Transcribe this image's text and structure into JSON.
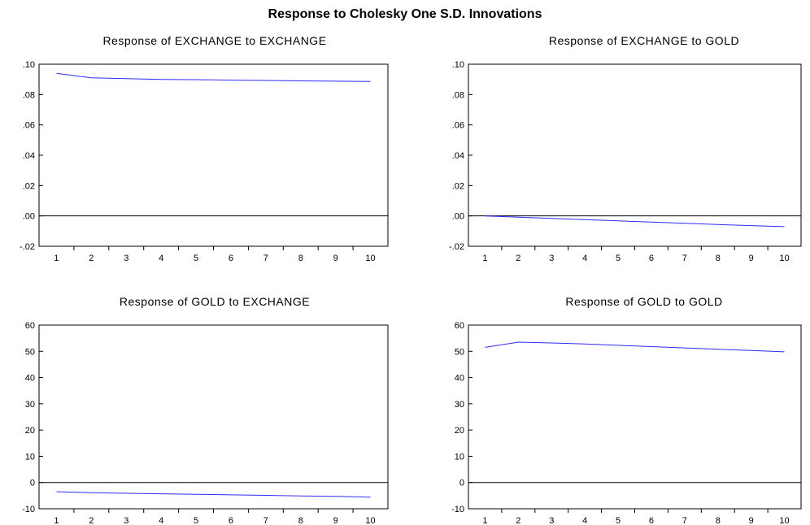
{
  "title": "Response to Cholesky One S.D. Innovations",
  "chart_data": [
    {
      "type": "line",
      "title": "Response of EXCHANGE to EXCHANGE",
      "x": [
        1,
        2,
        3,
        4,
        5,
        6,
        7,
        8,
        9,
        10
      ],
      "series": [
        {
          "values": [
            0.094,
            0.091,
            0.0905,
            0.09,
            0.0898,
            0.0895,
            0.0893,
            0.089,
            0.0888,
            0.0886
          ]
        }
      ],
      "ylim": [
        -0.02,
        0.1
      ],
      "yticks": [
        -0.02,
        0.0,
        0.02,
        0.04,
        0.06,
        0.08,
        0.1
      ],
      "yticklabels": [
        "-.02",
        ".00",
        ".02",
        ".04",
        ".06",
        ".08",
        ".10"
      ],
      "xticklabels": [
        "1",
        "2",
        "3",
        "4",
        "5",
        "6",
        "7",
        "8",
        "9",
        "10"
      ],
      "zero_line": true,
      "line_color": "#2b2bff"
    },
    {
      "type": "line",
      "title": "Response of EXCHANGE to GOLD",
      "x": [
        1,
        2,
        3,
        4,
        5,
        6,
        7,
        8,
        9,
        10
      ],
      "series": [
        {
          "values": [
            0.0,
            -0.0008,
            -0.0017,
            -0.0025,
            -0.0033,
            -0.0041,
            -0.0049,
            -0.0057,
            -0.0064,
            -0.0071
          ]
        }
      ],
      "ylim": [
        -0.02,
        0.1
      ],
      "yticks": [
        -0.02,
        0.0,
        0.02,
        0.04,
        0.06,
        0.08,
        0.1
      ],
      "yticklabels": [
        "-.02",
        ".00",
        ".02",
        ".04",
        ".06",
        ".08",
        ".10"
      ],
      "xticklabels": [
        "1",
        "2",
        "3",
        "4",
        "5",
        "6",
        "7",
        "8",
        "9",
        "10"
      ],
      "zero_line": true,
      "line_color": "#2b2bff"
    },
    {
      "type": "line",
      "title": "Response of GOLD to EXCHANGE",
      "x": [
        1,
        2,
        3,
        4,
        5,
        6,
        7,
        8,
        9,
        10
      ],
      "series": [
        {
          "values": [
            -3.5,
            -3.9,
            -4.1,
            -4.3,
            -4.5,
            -4.7,
            -4.9,
            -5.1,
            -5.3,
            -5.6
          ]
        }
      ],
      "ylim": [
        -10,
        60
      ],
      "yticks": [
        -10,
        0,
        10,
        20,
        30,
        40,
        50,
        60
      ],
      "yticklabels": [
        "-10",
        "0",
        "10",
        "20",
        "30",
        "40",
        "50",
        "60"
      ],
      "xticklabels": [
        "1",
        "2",
        "3",
        "4",
        "5",
        "6",
        "7",
        "8",
        "9",
        "10"
      ],
      "zero_line": true,
      "line_color": "#2b2bff"
    },
    {
      "type": "line",
      "title": "Response of GOLD to GOLD",
      "x": [
        1,
        2,
        3,
        4,
        5,
        6,
        7,
        8,
        9,
        10
      ],
      "series": [
        {
          "values": [
            51.5,
            53.5,
            53.2,
            52.8,
            52.3,
            51.8,
            51.3,
            50.8,
            50.3,
            49.8
          ]
        }
      ],
      "ylim": [
        -10,
        60
      ],
      "yticks": [
        -10,
        0,
        10,
        20,
        30,
        40,
        50,
        60
      ],
      "yticklabels": [
        "-10",
        "0",
        "10",
        "20",
        "30",
        "40",
        "50",
        "60"
      ],
      "xticklabels": [
        "1",
        "2",
        "3",
        "4",
        "5",
        "6",
        "7",
        "8",
        "9",
        "10"
      ],
      "zero_line": true,
      "line_color": "#2b2bff"
    }
  ]
}
